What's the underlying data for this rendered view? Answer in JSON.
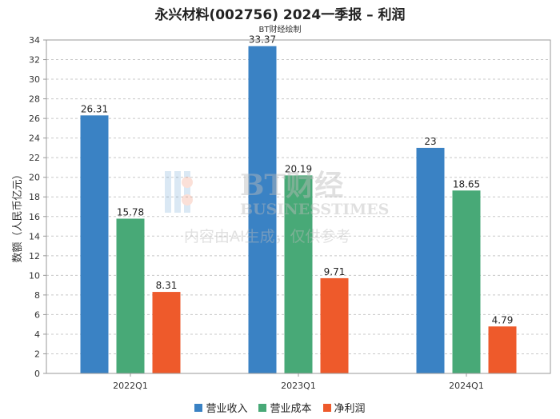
{
  "title": "永兴材料(002756) 2024一季报 – 利润",
  "subtitle": "BT财经绘制",
  "watermark": {
    "brand": "BT财经",
    "brand_en": "BUSINESSTIMES",
    "notice": "内容由AI生成，仅供参考"
  },
  "chart_data": {
    "type": "bar",
    "title": "永兴材料(002756) 2024一季报 – 利润",
    "subtitle": "BT财经绘制",
    "categories": [
      "2022Q1",
      "2023Q1",
      "2024Q1"
    ],
    "series": [
      {
        "name": "营业收入",
        "values": [
          26.31,
          33.37,
          23
        ],
        "labels": [
          "26.31",
          "33.37",
          "23"
        ],
        "color": "#3a82c4"
      },
      {
        "name": "营业成本",
        "values": [
          15.78,
          20.19,
          18.65
        ],
        "labels": [
          "15.78",
          "20.19",
          "18.65"
        ],
        "color": "#48a977"
      },
      {
        "name": "净利润",
        "values": [
          8.31,
          9.71,
          4.79
        ],
        "labels": [
          "8.31",
          "9.71",
          "4.79"
        ],
        "color": "#ee5a2b"
      }
    ],
    "ylabel": "数额（人民币亿元）",
    "xlabel": "",
    "ylim": [
      0,
      34
    ],
    "yticks": [
      0,
      2,
      4,
      6,
      8,
      10,
      12,
      14,
      16,
      18,
      20,
      22,
      24,
      26,
      28,
      30,
      32,
      34
    ],
    "grid": true,
    "legend_position": "bottom"
  }
}
